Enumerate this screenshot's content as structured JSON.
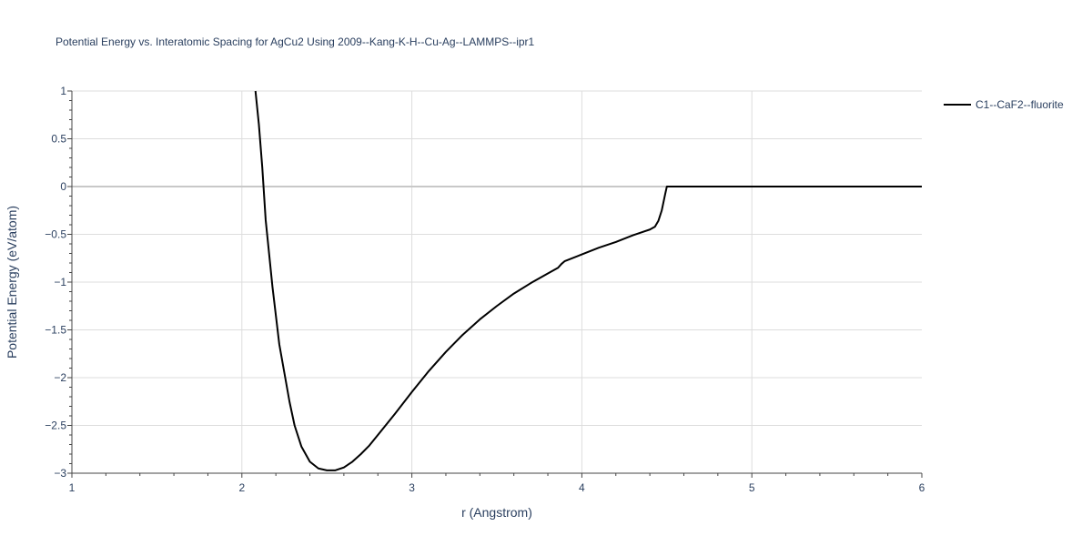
{
  "chart_data": {
    "type": "line",
    "title": "Potential Energy vs. Interatomic Spacing for AgCu2 Using 2009--Kang-K-H--Cu-Ag--LAMMPS--ipr1",
    "xlabel": "r (Angstrom)",
    "ylabel": "Potential Energy (eV/atom)",
    "xlim": [
      1,
      6
    ],
    "ylim": [
      -3,
      1
    ],
    "xticks": [
      1,
      2,
      3,
      4,
      5,
      6
    ],
    "xtick_labels": [
      "1",
      "2",
      "3",
      "4",
      "5",
      "6"
    ],
    "yticks": [
      -3,
      -2.5,
      -2,
      -1.5,
      -1,
      -0.5,
      0,
      0.5,
      1
    ],
    "ytick_labels": [
      "−3",
      "−2.5",
      "−2",
      "−1.5",
      "−1",
      "−0.5",
      "0",
      "0.5",
      "1"
    ],
    "grid": true,
    "legend_position": "top-right outside",
    "series": [
      {
        "name": "C1--CaF2--fluorite",
        "color": "#000000",
        "x": [
          2.08,
          2.1,
          2.12,
          2.14,
          2.16,
          2.18,
          2.2,
          2.22,
          2.25,
          2.28,
          2.31,
          2.35,
          2.4,
          2.45,
          2.5,
          2.55,
          2.6,
          2.65,
          2.7,
          2.75,
          2.8,
          2.9,
          3.0,
          3.1,
          3.2,
          3.3,
          3.4,
          3.5,
          3.6,
          3.7,
          3.8,
          3.86,
          3.88,
          3.9,
          4.0,
          4.1,
          4.2,
          4.3,
          4.4,
          4.43,
          4.45,
          4.47,
          4.49,
          4.5,
          4.6,
          5.0,
          5.5,
          6.0
        ],
        "y": [
          1.0,
          0.65,
          0.2,
          -0.35,
          -0.7,
          -1.05,
          -1.35,
          -1.65,
          -1.95,
          -2.25,
          -2.5,
          -2.72,
          -2.88,
          -2.95,
          -2.97,
          -2.97,
          -2.94,
          -2.88,
          -2.8,
          -2.71,
          -2.6,
          -2.38,
          -2.15,
          -1.93,
          -1.73,
          -1.55,
          -1.39,
          -1.25,
          -1.12,
          -1.01,
          -0.91,
          -0.85,
          -0.81,
          -0.78,
          -0.71,
          -0.64,
          -0.58,
          -0.51,
          -0.45,
          -0.42,
          -0.36,
          -0.25,
          -0.08,
          0.0,
          0.0,
          0.0,
          0.0,
          0.0
        ]
      }
    ]
  }
}
